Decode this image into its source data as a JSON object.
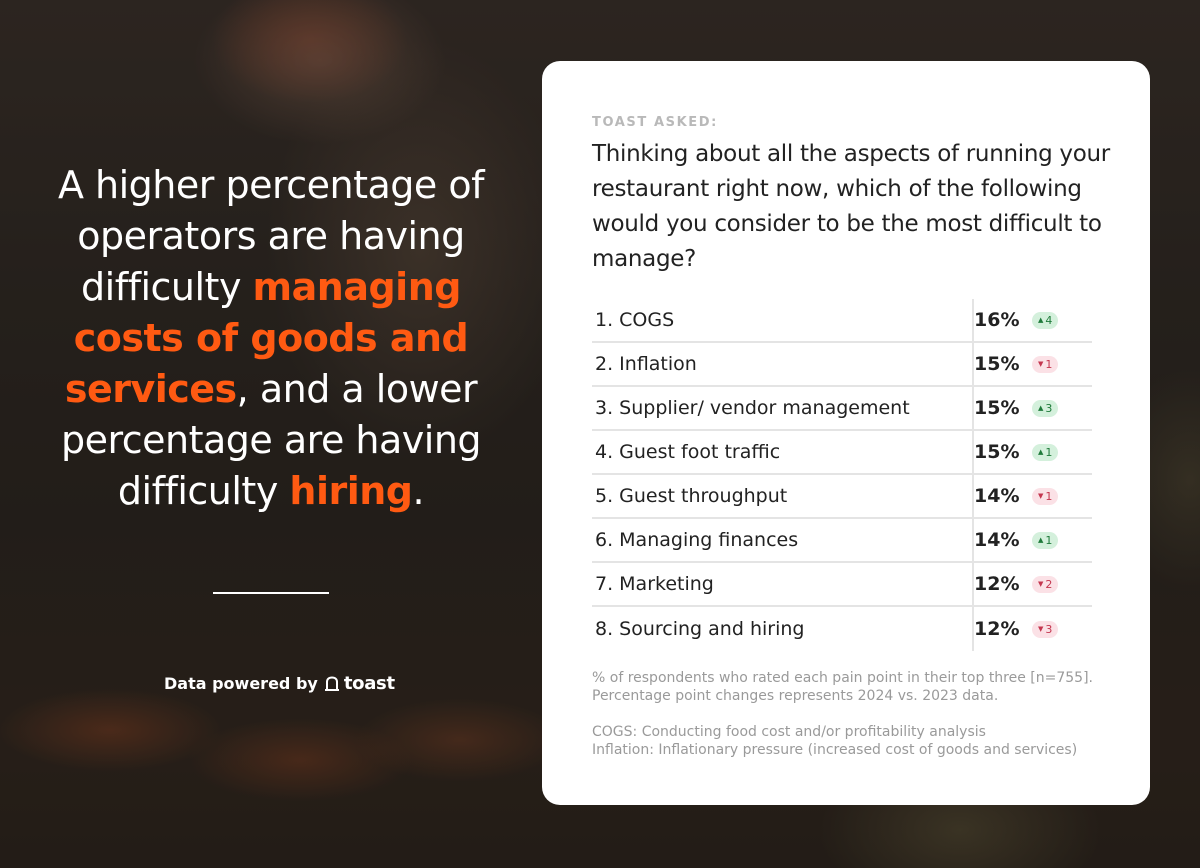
{
  "left": {
    "headline_parts": [
      {
        "text": "A higher percentage of operators are having difficulty ",
        "highlight": false
      },
      {
        "text": "managing costs of goods and services",
        "highlight": true
      },
      {
        "text": ", and a lower percentage are having difficulty ",
        "highlight": false
      },
      {
        "text": "hiring",
        "highlight": true
      },
      {
        "text": ".",
        "highlight": false
      }
    ],
    "powered_by": "Data powered by",
    "brand": "toast"
  },
  "card": {
    "asked_label": "TOAST ASKED:",
    "question": "Thinking about all the aspects of running your restaurant right now, which of the following would you consider to be the most difficult to manage?",
    "rows": [
      {
        "label": "1. COGS",
        "pct": "16%",
        "change": "4",
        "direction": "up"
      },
      {
        "label": "2. Inflation",
        "pct": "15%",
        "change": "1",
        "direction": "down"
      },
      {
        "label": "3. Supplier/ vendor management",
        "pct": "15%",
        "change": "3",
        "direction": "up"
      },
      {
        "label": "4. Guest foot traffic",
        "pct": "15%",
        "change": "1",
        "direction": "up"
      },
      {
        "label": "5. Guest throughput",
        "pct": "14%",
        "change": "1",
        "direction": "down"
      },
      {
        "label": "6. Managing finances",
        "pct": "14%",
        "change": "1",
        "direction": "up"
      },
      {
        "label": "7. Marketing",
        "pct": "12%",
        "change": "2",
        "direction": "down"
      },
      {
        "label": "8. Sourcing and hiring",
        "pct": "12%",
        "change": "3",
        "direction": "down"
      }
    ],
    "note1_line1": " % of respondents who rated each pain point in their top three [n=755].",
    "note1_line2": "Percentage point changes represents 2024 vs. 2023 data.",
    "note2_line1": "COGS: Conducting food cost and/or profitability analysis",
    "note2_line2": "Inflation: Inflationary pressure (increased cost of goods and services)"
  },
  "colors": {
    "accent": "#ff5a12",
    "up_bg": "#d4f0dc",
    "up_fg": "#1f7a3a",
    "down_bg": "#fbe1e6",
    "down_fg": "#c4364f"
  }
}
